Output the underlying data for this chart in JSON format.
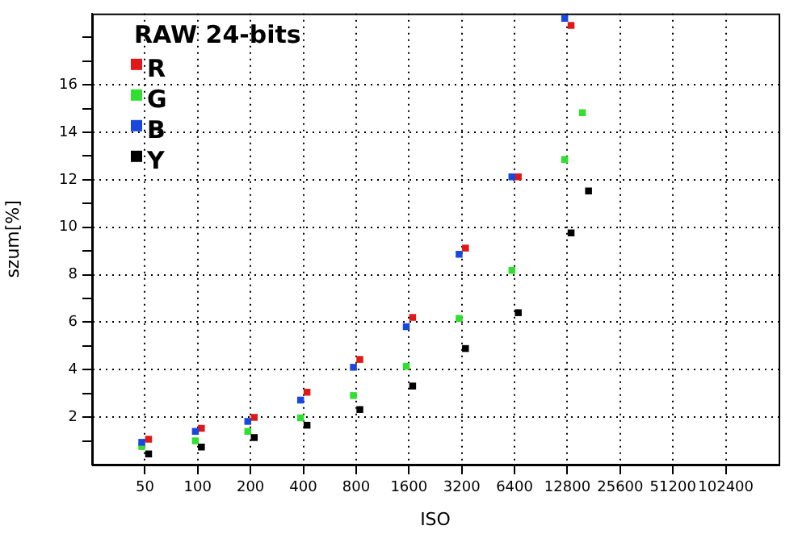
{
  "chart_data": {
    "type": "scatter",
    "xlabel": "ISO",
    "ylabel": "szum[%]",
    "legend_title": "RAW 24-bits",
    "legend": "top left",
    "grid": true,
    "marker": "square",
    "log": "x",
    "xlim": [
      25,
      204800
    ],
    "xticks": [
      50,
      100,
      200,
      400,
      800,
      1600,
      3200,
      6400,
      12800,
      25600,
      51200,
      102400
    ],
    "ylim": [
      0,
      19
    ],
    "yticks": [
      {
        "value": 1,
        "label": null
      },
      2,
      {
        "value": 3,
        "label": null
      },
      4,
      {
        "value": 5,
        "label": null
      },
      6,
      {
        "value": 7,
        "label": null
      },
      8,
      {
        "value": 9,
        "label": null
      },
      10,
      {
        "value": 11,
        "label": null
      },
      12,
      {
        "value": 13,
        "label": null
      },
      14,
      {
        "value": 15,
        "label": null
      },
      16,
      {
        "value": 17,
        "label": null
      },
      {
        "value": 18,
        "label": null
      }
    ],
    "series": [
      {
        "name": "R",
        "color": "#e01818",
        "x": [
          52.5,
          105,
          210,
          420,
          840,
          1680,
          3360,
          6720,
          13440
        ],
        "values": [
          1.07,
          1.53,
          1.99,
          3.05,
          4.43,
          6.2,
          9.12,
          12.12,
          18.5
        ]
      },
      {
        "name": "G",
        "color": "#30e030",
        "x": [
          48,
          97,
          193,
          386,
          772,
          1545,
          3090,
          6180,
          12360,
          15600
        ],
        "values": [
          0.76,
          1.0,
          1.4,
          1.97,
          2.91,
          4.14,
          6.16,
          8.18,
          12.85,
          14.82
        ]
      },
      {
        "name": "B",
        "color": "#1848e0",
        "x": [
          48,
          97,
          193,
          386,
          772,
          1545,
          3090,
          6180,
          12360
        ],
        "values": [
          0.94,
          1.4,
          1.82,
          2.72,
          4.1,
          5.81,
          8.86,
          12.12,
          18.8
        ]
      },
      {
        "name": "Y",
        "color": "#000000",
        "x": [
          52.5,
          105,
          210,
          420,
          840,
          1680,
          3360,
          6720,
          13440,
          16900
        ],
        "values": [
          0.45,
          0.74,
          1.14,
          1.66,
          2.32,
          3.31,
          4.89,
          6.4,
          9.76,
          11.53
        ]
      }
    ]
  }
}
